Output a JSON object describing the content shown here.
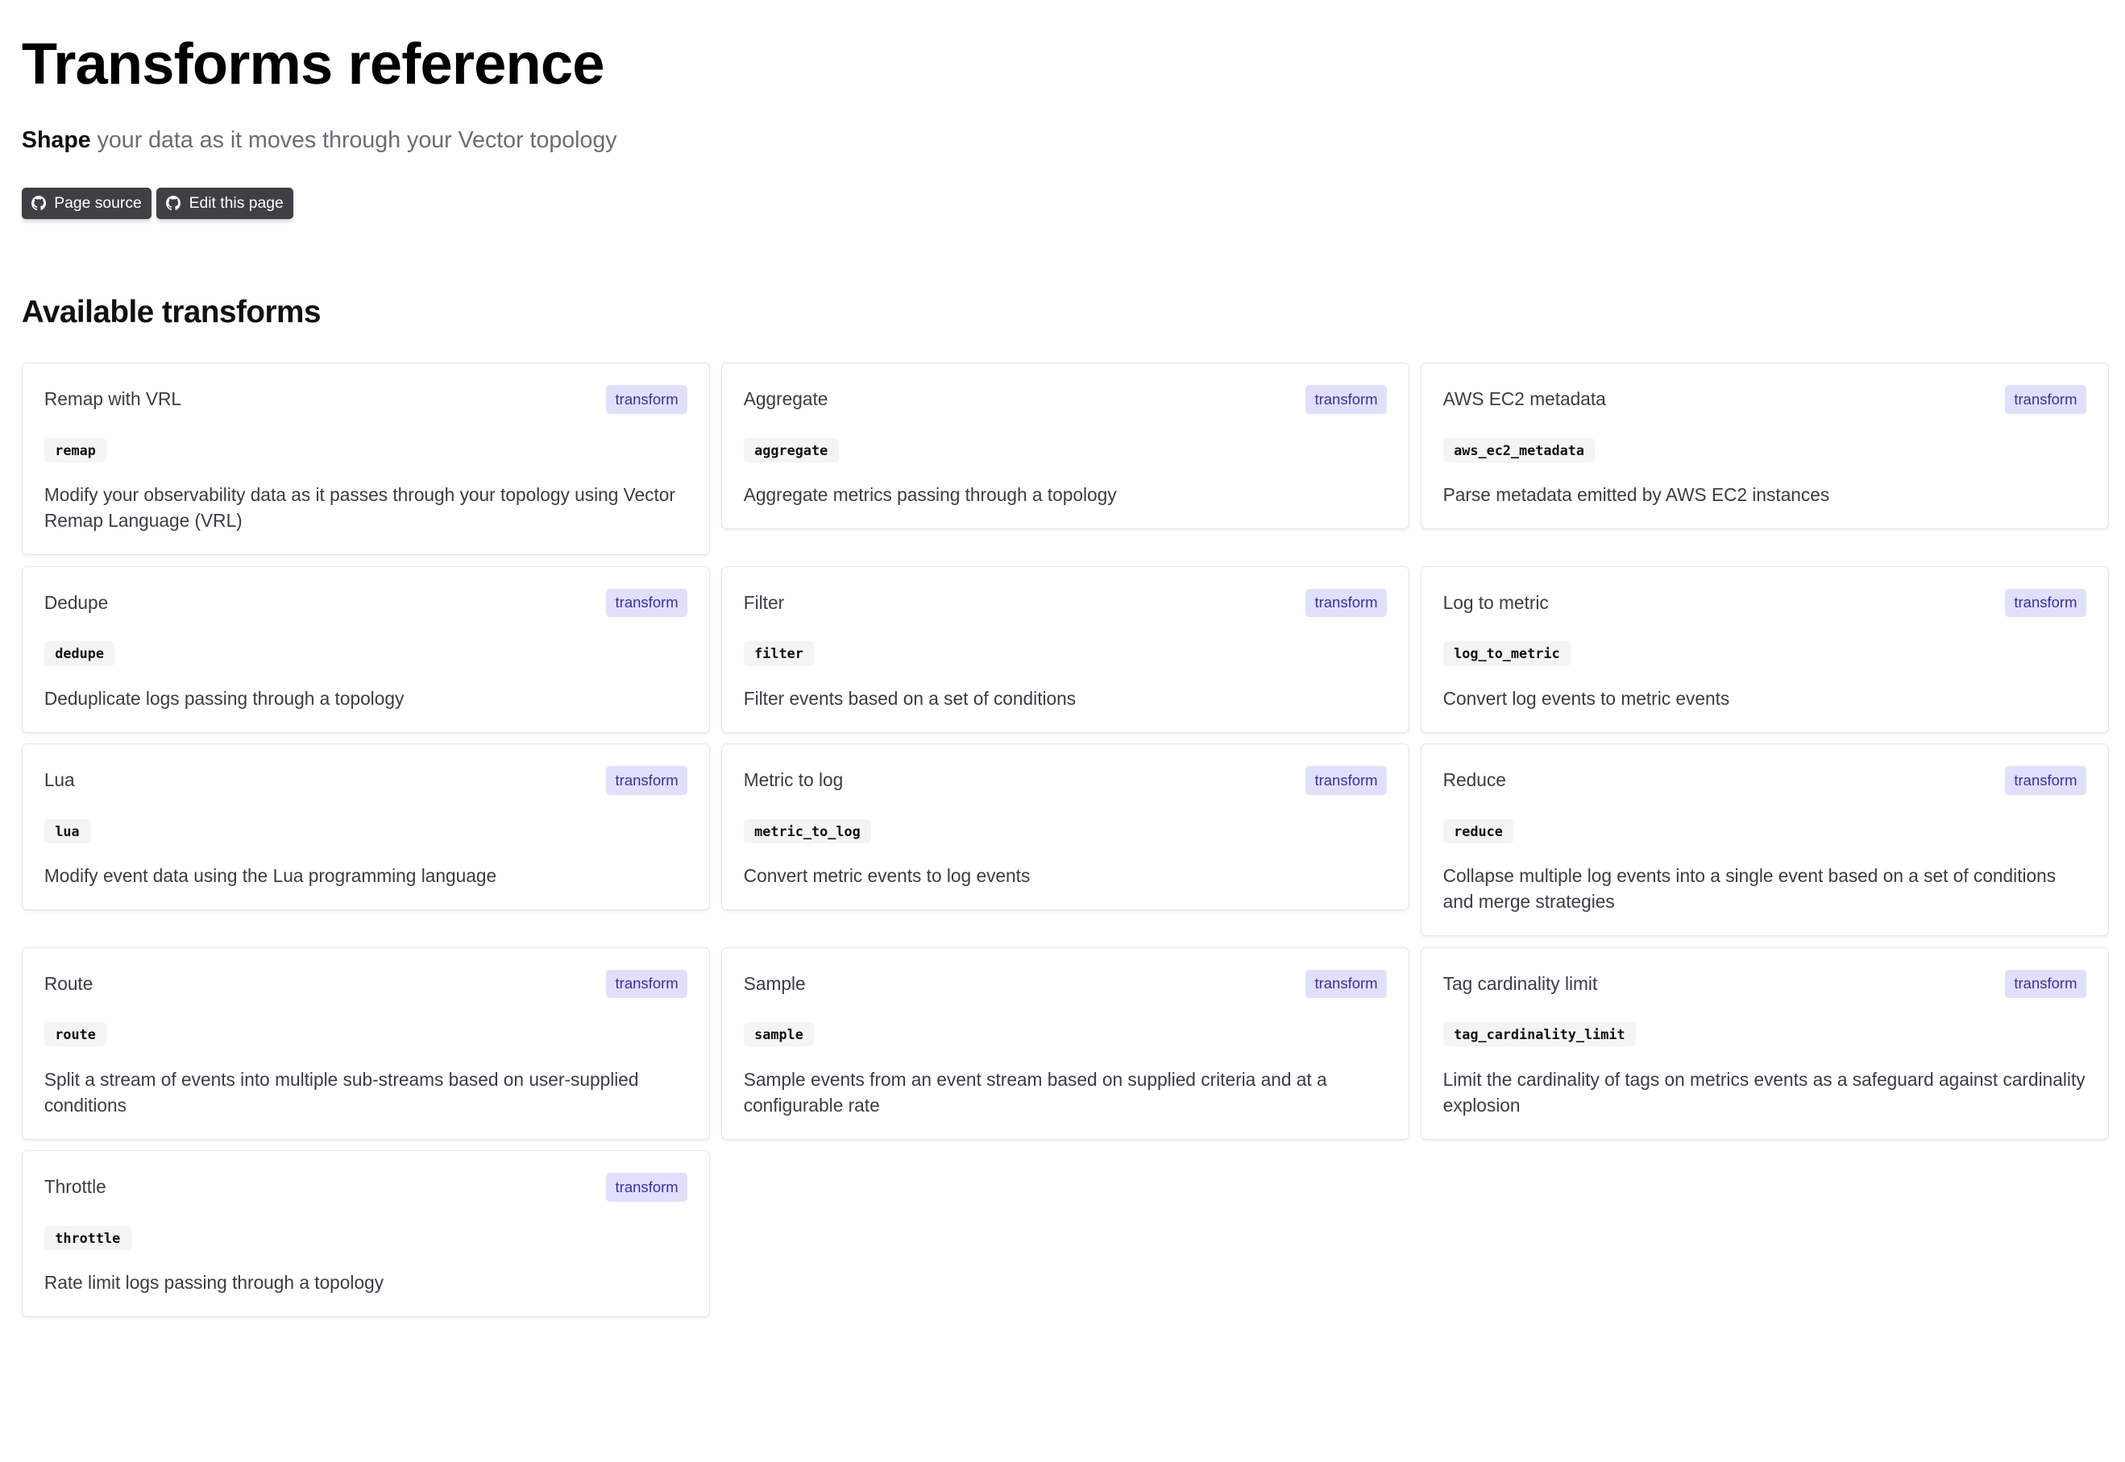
{
  "header": {
    "title": "Transforms reference",
    "subtitle_strong": "Shape",
    "subtitle_rest": " your data as it moves through your Vector topology",
    "buttons": [
      {
        "label": "Page source",
        "icon": "github-icon"
      },
      {
        "label": "Edit this page",
        "icon": "github-icon"
      }
    ]
  },
  "section": {
    "title": "Available transforms"
  },
  "colors": {
    "button_bg": "#3f3f46",
    "badge_bg": "#e0e0fc",
    "badge_text": "#3b2fa0"
  },
  "cards": [
    {
      "title": "Remap with VRL",
      "badge": "transform",
      "code": "remap",
      "description": "Modify your observability data as it passes through your topology using Vector Remap Language (VRL)"
    },
    {
      "title": "Aggregate",
      "badge": "transform",
      "code": "aggregate",
      "description": "Aggregate metrics passing through a topology"
    },
    {
      "title": "AWS EC2 metadata",
      "badge": "transform",
      "code": "aws_ec2_metadata",
      "description": "Parse metadata emitted by AWS EC2 instances"
    },
    {
      "title": "Dedupe",
      "badge": "transform",
      "code": "dedupe",
      "description": "Deduplicate logs passing through a topology"
    },
    {
      "title": "Filter",
      "badge": "transform",
      "code": "filter",
      "description": "Filter events based on a set of conditions"
    },
    {
      "title": "Log to metric",
      "badge": "transform",
      "code": "log_to_metric",
      "description": "Convert log events to metric events"
    },
    {
      "title": "Lua",
      "badge": "transform",
      "code": "lua",
      "description": "Modify event data using the Lua programming language"
    },
    {
      "title": "Metric to log",
      "badge": "transform",
      "code": "metric_to_log",
      "description": "Convert metric events to log events"
    },
    {
      "title": "Reduce",
      "badge": "transform",
      "code": "reduce",
      "description": "Collapse multiple log events into a single event based on a set of conditions and merge strategies"
    },
    {
      "title": "Route",
      "badge": "transform",
      "code": "route",
      "description": "Split a stream of events into multiple sub-streams based on user-supplied conditions"
    },
    {
      "title": "Sample",
      "badge": "transform",
      "code": "sample",
      "description": "Sample events from an event stream based on supplied criteria and at a configurable rate"
    },
    {
      "title": "Tag cardinality limit",
      "badge": "transform",
      "code": "tag_cardinality_limit",
      "description": "Limit the cardinality of tags on metrics events as a safeguard against cardinality explosion"
    },
    {
      "title": "Throttle",
      "badge": "transform",
      "code": "throttle",
      "description": "Rate limit logs passing through a topology"
    }
  ]
}
